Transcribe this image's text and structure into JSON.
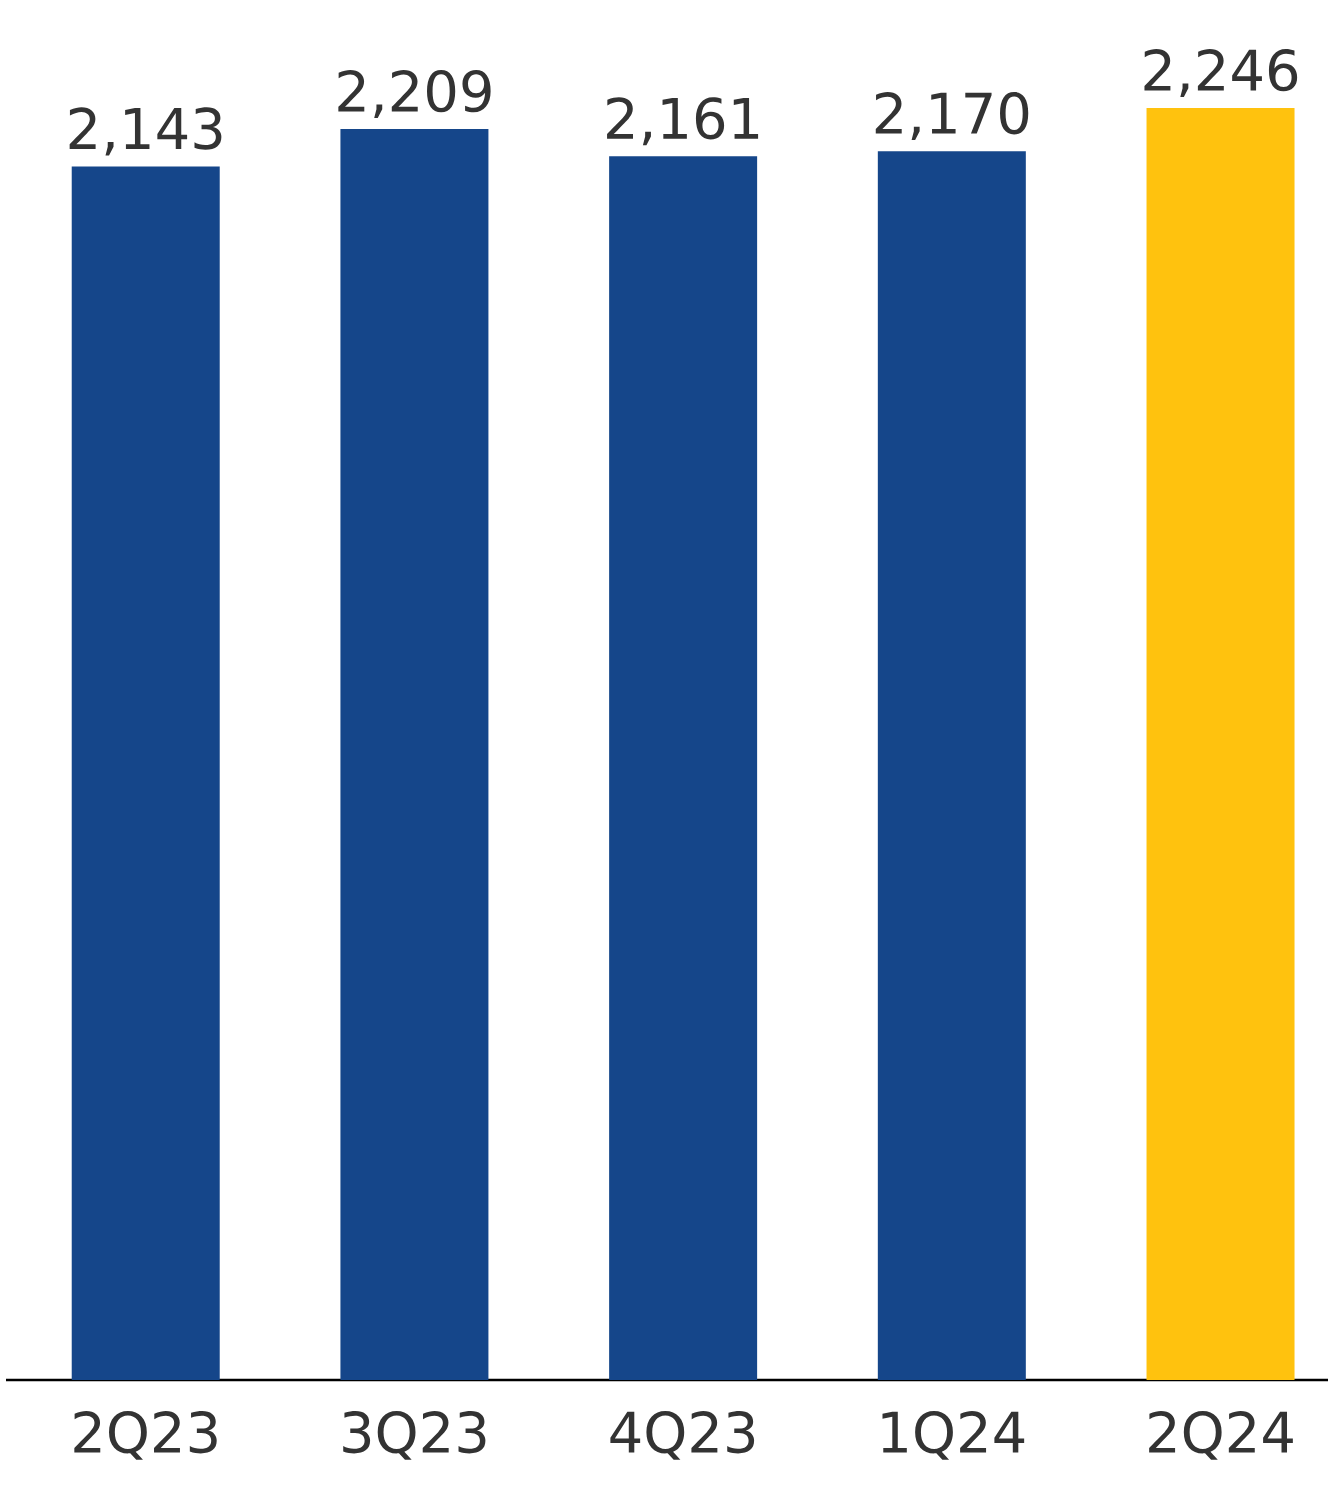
{
  "chart_data": {
    "type": "bar",
    "categories": [
      "2Q23",
      "3Q23",
      "4Q23",
      "1Q24",
      "2Q24"
    ],
    "values": [
      2143,
      2209,
      2161,
      2170,
      2246
    ],
    "value_labels": [
      "2,143",
      "2,209",
      "2,161",
      "2,170",
      "2,246"
    ],
    "colors": [
      "#15468a",
      "#15468a",
      "#15468a",
      "#15468a",
      "#ffc20e"
    ]
  }
}
